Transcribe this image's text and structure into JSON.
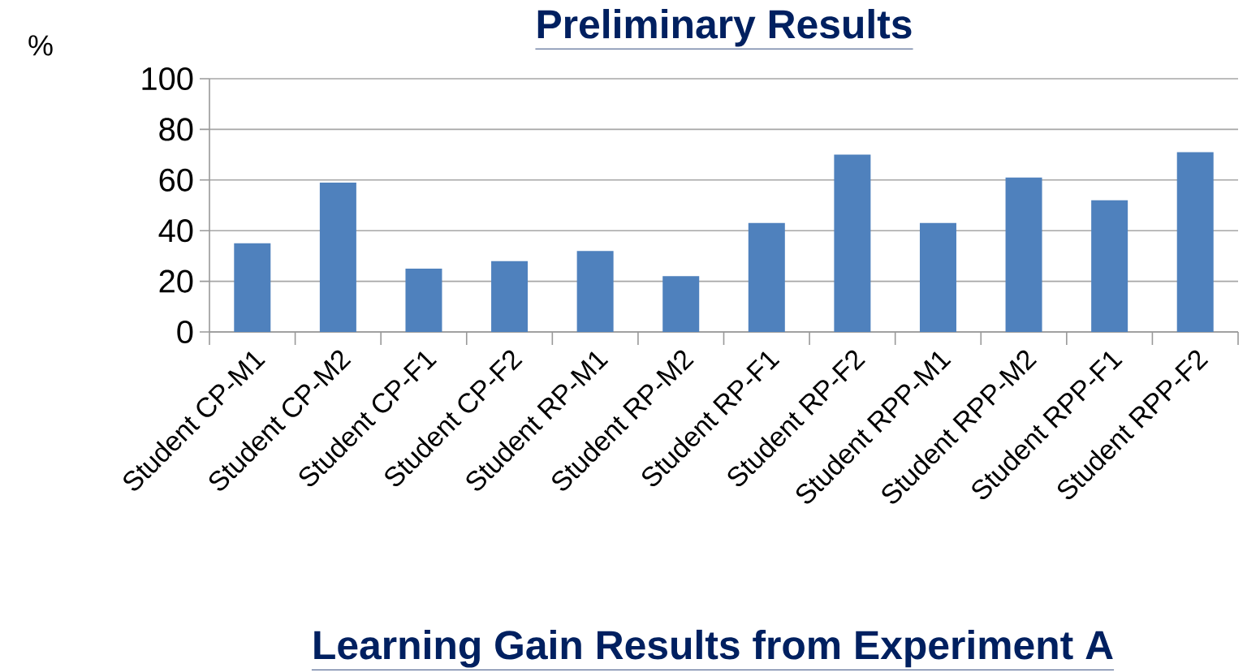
{
  "chart_data": {
    "type": "bar",
    "title": "Preliminary Results",
    "ylabel": "%",
    "categories": [
      "Student CP-M1",
      "Student CP-M2",
      "Student CP-F1",
      "Student CP-F2",
      "Student RP-M1",
      "Student RP-M2",
      "Student RP-F1",
      "Student RP-F2",
      "Student RPP-M1",
      "Student RPP-M2",
      "Student RPP-F1",
      "Student RPP-F2"
    ],
    "values": [
      35,
      59,
      25,
      28,
      32,
      22,
      43,
      70,
      43,
      61,
      52,
      71
    ],
    "color": "#4f81bd",
    "ylim": [
      0,
      100
    ],
    "yticks": [
      0,
      20,
      40,
      60,
      80,
      100
    ],
    "grid": "y",
    "annotations": [
      "Learning Gain Results from Experiment A"
    ]
  }
}
